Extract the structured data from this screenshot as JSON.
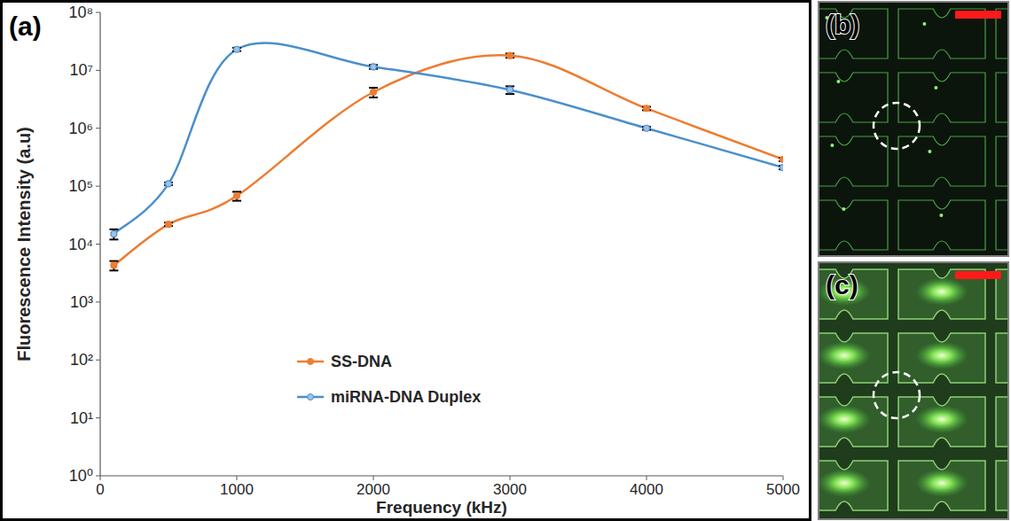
{
  "chart_data": {
    "type": "line",
    "label": "(a)",
    "x_label": "Frequency (kHz)",
    "y_label": "Fluorescence  Intensity (a.u)",
    "log": "y",
    "grid": false,
    "legend": "center",
    "marker": "circle",
    "xlim": [
      0,
      5000
    ],
    "xticks": [
      0,
      1000,
      2000,
      3000,
      4000,
      5000
    ],
    "ylim": [
      1,
      100000000
    ],
    "yticks": [
      {
        "value": 1,
        "label": "10⁰"
      },
      {
        "value": 10,
        "label": "10¹"
      },
      {
        "value": 100,
        "label": "10²"
      },
      {
        "value": 1000,
        "label": "10³"
      },
      {
        "value": 10000,
        "label": "10⁴"
      },
      {
        "value": 100000,
        "label": "10⁵"
      },
      {
        "value": 1000000,
        "label": "10⁶"
      },
      {
        "value": 10000000,
        "label": "10⁷"
      },
      {
        "value": 100000000,
        "label": "10⁸"
      }
    ],
    "x": [
      100,
      500,
      1000,
      2000,
      3000,
      4000,
      5000
    ],
    "series": [
      {
        "name": "SS-DNA",
        "color": "#ed7d31",
        "values": [
          4300,
          22000,
          68000,
          4200000,
          18000000,
          2200000,
          290000
        ],
        "errors": [
          800,
          1500,
          12000,
          800000,
          1500000,
          150000,
          20000
        ]
      },
      {
        "name": "miRNA-DNA Duplex",
        "color": "#4a8fcc",
        "values": [
          15000,
          110000,
          23000000,
          11500000,
          4600000,
          1000000,
          210000
        ],
        "errors": [
          3000,
          6000,
          1500000,
          900000,
          700000,
          60000,
          15000
        ]
      }
    ]
  },
  "images": [
    {
      "label": "(b)"
    },
    {
      "label": "(c)"
    }
  ]
}
